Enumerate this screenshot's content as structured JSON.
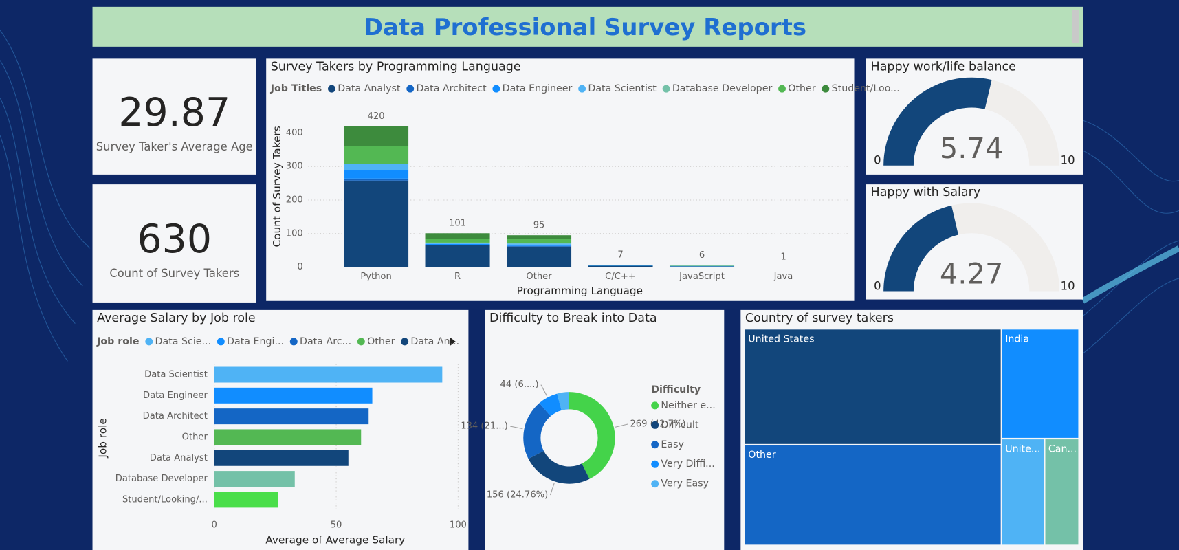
{
  "header": {
    "title": "Data Professional Survey Reports"
  },
  "cards": [
    {
      "value": 29.87,
      "label": "Survey Taker's Average Age"
    },
    {
      "value": 630,
      "label": "Count of Survey Takers"
    }
  ],
  "chart_data": [
    {
      "type": "stacked_bar",
      "title": "Survey Takers by Programming Language",
      "legend_title": "Job Titles",
      "categories": [
        "Python",
        "R",
        "Other",
        "C/C++",
        "JavaScript",
        "Java"
      ],
      "series": [
        {
          "name": "Data Analyst",
          "color": "#12467b",
          "values": [
            258,
            65,
            61,
            4,
            2,
            0
          ]
        },
        {
          "name": "Data Architect",
          "color": "#1466c5",
          "values": [
            6,
            1,
            2,
            0,
            0,
            0
          ]
        },
        {
          "name": "Data Engineer",
          "color": "#118dff",
          "values": [
            25,
            3,
            4,
            1,
            0,
            0
          ]
        },
        {
          "name": "Data Scientist",
          "color": "#4fb3f5",
          "values": [
            18,
            3,
            3,
            0,
            1,
            0
          ]
        },
        {
          "name": "Database Developer",
          "color": "#74c1a8",
          "values": [
            0,
            1,
            1,
            0,
            2,
            0
          ]
        },
        {
          "name": "Other",
          "color": "#53b853",
          "values": [
            55,
            12,
            12,
            1,
            1,
            1
          ]
        },
        {
          "name": "Student/Loo...",
          "color": "#3d8b3d",
          "values": [
            58,
            16,
            12,
            1,
            0,
            0
          ]
        }
      ],
      "totals": [
        420,
        101,
        95,
        7,
        6,
        1
      ],
      "ylim": [
        0,
        440
      ],
      "yticks": [
        0,
        100,
        200,
        300,
        400
      ],
      "grid": true,
      "xlabel": "Programming Language",
      "ylabel": "Count of Survey Takers"
    },
    {
      "type": "gauge",
      "title": "Happy work/life balance",
      "value": 5.74,
      "min": 0,
      "max": 10,
      "color": "#12467b",
      "track_color": "#f0eeec"
    },
    {
      "type": "gauge",
      "title": "Happy with Salary",
      "value": 4.27,
      "min": 0,
      "max": 10,
      "color": "#12467b",
      "track_color": "#f0eeec"
    },
    {
      "type": "hbar",
      "title": "Average Salary by Job role",
      "legend_title": "Job role",
      "legend": [
        {
          "name": "Data Scie...",
          "color": "#4fb3f5"
        },
        {
          "name": "Data Engi...",
          "color": "#118dff"
        },
        {
          "name": "Data Arc...",
          "color": "#1466c5"
        },
        {
          "name": "Other",
          "color": "#53b853"
        },
        {
          "name": "Data An...",
          "color": "#12467b"
        }
      ],
      "categories": [
        "Data Scientist",
        "Data Engineer",
        "Data Architect",
        "Other",
        "Data Analyst",
        "Database Developer",
        "Student/Looking/..."
      ],
      "values": [
        93.5,
        64.8,
        63.3,
        60.2,
        55.0,
        33.0,
        26.2
      ],
      "colors": [
        "#4fb3f5",
        "#118dff",
        "#1466c5",
        "#53b853",
        "#12467b",
        "#74c1a8",
        "#4ade4a"
      ],
      "xlim": [
        0,
        103
      ],
      "xticks": [
        0,
        50,
        100
      ],
      "grid": true,
      "xlabel": "Average of Average Salary",
      "ylabel": "Job role"
    },
    {
      "type": "donut",
      "title": "Difficulty to Break into Data",
      "legend_title": "Difficulty",
      "categories": [
        "Neither e...",
        "Difficult",
        "Easy",
        "Very Diffi...",
        "Very Easy"
      ],
      "values": [
        269,
        156,
        134,
        44,
        27
      ],
      "value_labels": [
        "269 (42.7%)",
        "156 (24.76%)",
        "134 (21...)",
        "44 (6....)",
        null
      ],
      "colors": [
        "#44d34a",
        "#12467b",
        "#1466c5",
        "#118dff",
        "#4fb3f5"
      ]
    },
    {
      "type": "treemap",
      "title": "Country of survey takers",
      "categories": [
        "United States",
        "Other",
        "India",
        "Unite...",
        "Can..."
      ],
      "values": [
        259,
        225,
        74,
        40,
        32
      ],
      "colors": [
        "#12467b",
        "#1466c5",
        "#118dff",
        "#4fb3f5",
        "#74c1a8"
      ]
    }
  ]
}
